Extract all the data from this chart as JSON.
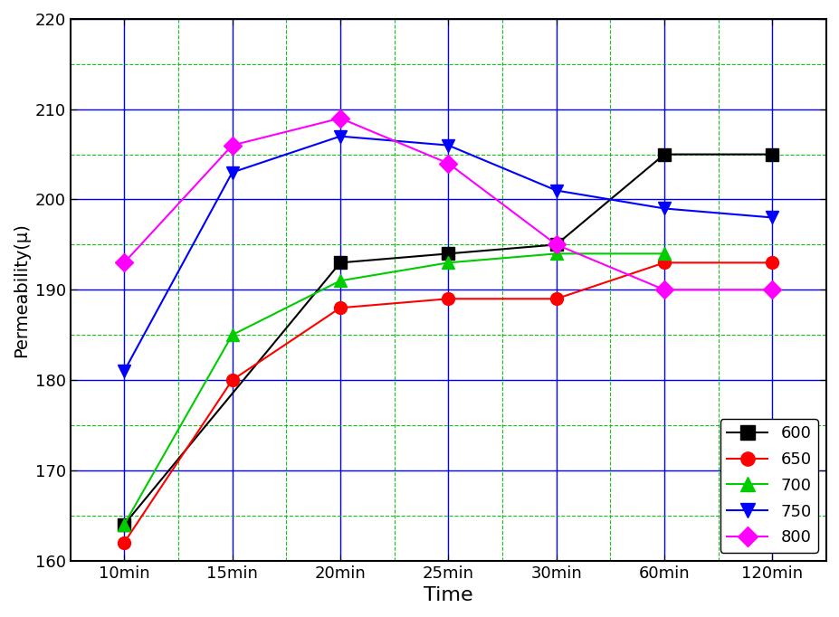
{
  "x_labels": [
    "10min",
    "15min",
    "20min",
    "25min",
    "30min",
    "60min",
    "120min"
  ],
  "x_values": [
    0,
    1,
    2,
    3,
    4,
    5,
    6
  ],
  "series": {
    "600": {
      "values": [
        164,
        null,
        193,
        194,
        195,
        205,
        205
      ],
      "color": "#000000",
      "marker": "s",
      "linestyle": "-"
    },
    "650": {
      "values": [
        162,
        180,
        188,
        189,
        189,
        193,
        193
      ],
      "color": "#ff0000",
      "marker": "o",
      "linestyle": "-"
    },
    "700": {
      "values": [
        164,
        185,
        191,
        193,
        194,
        194,
        null
      ],
      "color": "#00cc00",
      "marker": "^",
      "linestyle": "-"
    },
    "750": {
      "values": [
        181,
        203,
        207,
        206,
        201,
        199,
        198
      ],
      "color": "#0000ff",
      "marker": "v",
      "linestyle": "-"
    },
    "800": {
      "values": [
        193,
        206,
        209,
        204,
        195,
        190,
        190
      ],
      "color": "#ff00ff",
      "marker": "D",
      "linestyle": "-"
    }
  },
  "xlabel": "Time",
  "ylabel": "Permeability(μ)",
  "ylim": [
    160,
    220
  ],
  "yticks": [
    160,
    170,
    180,
    190,
    200,
    210,
    220
  ],
  "grid_major_color": "#0000ff",
  "grid_minor_color": "#00bb00",
  "axis_fontsize": 14,
  "xlabel_fontsize": 16,
  "tick_fontsize": 13,
  "legend_fontsize": 13,
  "marker_size": 10,
  "linewidth": 1.5,
  "background_color": "#ffffff"
}
